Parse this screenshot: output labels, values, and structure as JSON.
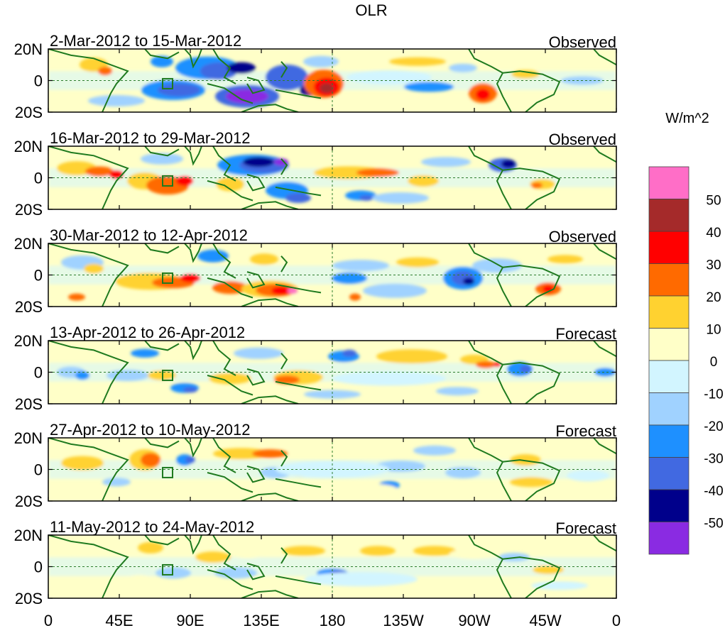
{
  "figure": {
    "title": "OLR",
    "x_tick_labels": [
      "0",
      "45E",
      "90E",
      "135E",
      "180",
      "135W",
      "90W",
      "45W",
      "0"
    ],
    "lat_labels": [
      "20N",
      "0",
      "20S"
    ]
  },
  "panels": [
    {
      "period": "2-Mar-2012 to 15-Mar-2012",
      "kind": "Observed"
    },
    {
      "period": "16-Mar-2012 to 29-Mar-2012",
      "kind": "Observed"
    },
    {
      "period": "30-Mar-2012 to 12-Apr-2012",
      "kind": "Observed"
    },
    {
      "period": "13-Apr-2012 to 26-Apr-2012",
      "kind": "Forecast"
    },
    {
      "period": "27-Apr-2012 to 10-May-2012",
      "kind": "Forecast"
    },
    {
      "period": "11-May-2012 to 24-May-2012",
      "kind": "Forecast"
    }
  ],
  "legend": {
    "units": "W/m^2",
    "tick_labels": [
      "50",
      "40",
      "30",
      "20",
      "10",
      "0",
      "-10",
      "-20",
      "-30",
      "-40",
      "-50"
    ],
    "colors": [
      "#ff6ec7",
      "#a52a2a",
      "#ff0000",
      "#ff6a00",
      "#ffd230",
      "#ffffc8",
      "#d2f5ff",
      "#a0d2ff",
      "#1e90ff",
      "#4169e1",
      "#00008b",
      "#8a2be2"
    ]
  },
  "colors": {
    "coastline": "#1f7a1f",
    "equator_line": "#2e7d2e",
    "background": "#ffffff"
  }
}
